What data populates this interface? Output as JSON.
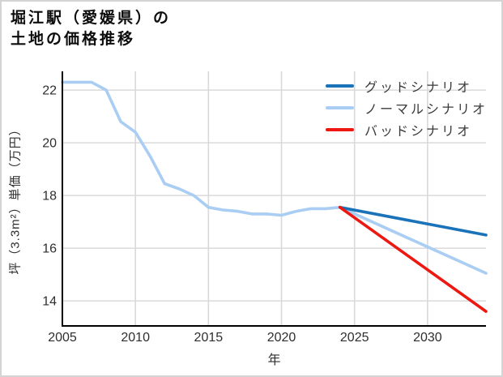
{
  "page": {
    "title_line1": "堀江駅（愛媛県）の",
    "title_line2": "土地の価格推移"
  },
  "chart_data": {
    "type": "line",
    "title": "堀江駅（愛媛県）の土地の価格推移",
    "xlabel": "年",
    "ylabel": "坪（3.3m²）単価（万円）",
    "xlim": [
      2005,
      2034
    ],
    "ylim": [
      13.05,
      22.65
    ],
    "x_ticks": [
      2005,
      2010,
      2015,
      2020,
      2025,
      2030
    ],
    "y_ticks": [
      14,
      16,
      18,
      20,
      22
    ],
    "grid": true,
    "legend_position": "upper right",
    "colors": {
      "good": "#1a73b9",
      "normal": "#a9cdf3",
      "bad": "#ed1811",
      "gridline": "#d9d9d9",
      "axis": "#000000"
    },
    "series": [
      {
        "name": "グッドシナリオ",
        "color": "#1a73b9",
        "x": [
          2024,
          2034
        ],
        "values": [
          17.55,
          16.5
        ]
      },
      {
        "name": "ノーマルシナリオ",
        "color": "#a9cdf3",
        "x": [
          2005,
          2006,
          2007,
          2008,
          2009,
          2010,
          2011,
          2012,
          2013,
          2014,
          2015,
          2016,
          2017,
          2018,
          2019,
          2020,
          2021,
          2022,
          2023,
          2024,
          2034
        ],
        "values": [
          22.3,
          22.3,
          22.3,
          22.0,
          20.8,
          20.4,
          19.5,
          18.45,
          18.25,
          18.0,
          17.55,
          17.45,
          17.4,
          17.3,
          17.3,
          17.25,
          17.4,
          17.5,
          17.5,
          17.55,
          15.05
        ]
      },
      {
        "name": "バッドシナリオ",
        "color": "#ed1811",
        "x": [
          2024,
          2034
        ],
        "values": [
          17.55,
          13.6
        ]
      }
    ]
  }
}
